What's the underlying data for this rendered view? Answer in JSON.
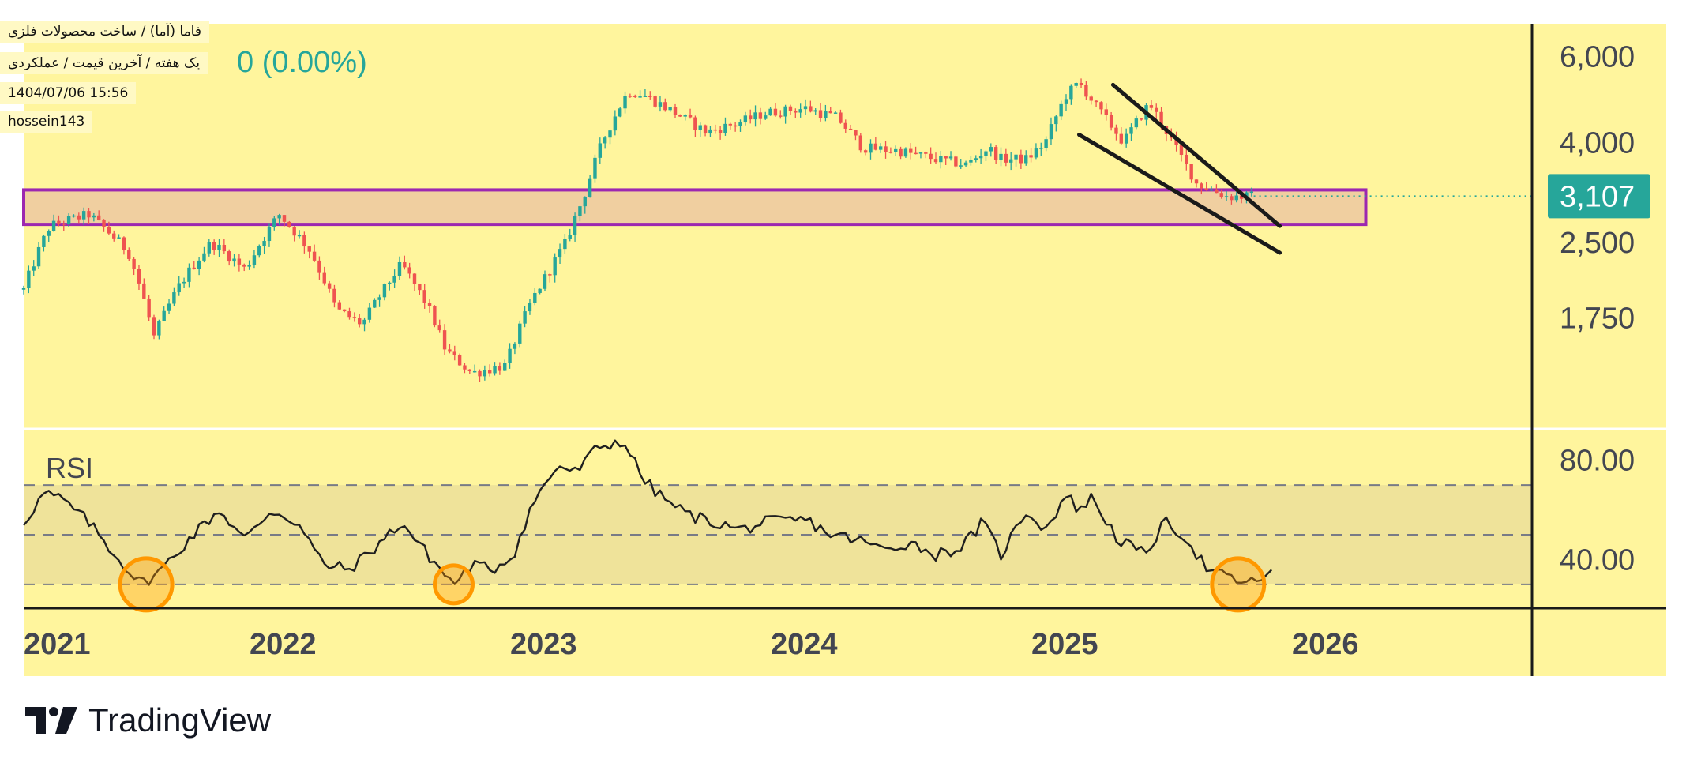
{
  "header": {
    "title": "فاما (آما) / ساخت محصولات فلزی",
    "subtitle": "یک هفته / آخرین قیمت / عملکردی",
    "datetime": "1404/07/06 15:56",
    "author": "hossein143",
    "price_change": "0 (0.00%)"
  },
  "brand": {
    "name": "TradingView"
  },
  "colors": {
    "background": "#fff59d",
    "up": "#26a69a",
    "down": "#ef5350",
    "zone_fill": "#f0cfa0",
    "zone_border": "#9c27b0",
    "rsi_band": "#efe39a",
    "circle": "#ff9800",
    "last_price_label": "#26a69a"
  },
  "chart_data": [
    {
      "type": "candlestick",
      "timeframe": "1W",
      "y_scale": "log",
      "ylim": [
        1050,
        7000
      ],
      "price_ticks": [
        "6,000",
        "4,000",
        "2,500",
        "1,750"
      ],
      "price_tick_values": [
        6000,
        4000,
        2500,
        1750
      ],
      "last_price": 3107,
      "last_price_label": "3,107",
      "x_labels": [
        "2021",
        "2022",
        "2023",
        "2024",
        "2025",
        "2026"
      ],
      "support_zone": {
        "low": 2720,
        "high": 3200,
        "start": 2021.0,
        "end": 2026.15
      },
      "wedge_lines": [
        {
          "from": [
            2025.18,
            5250
          ],
          "to": [
            2025.82,
            2700
          ]
        },
        {
          "from": [
            2025.05,
            4150
          ],
          "to": [
            2025.82,
            2380
          ]
        }
      ],
      "anchors": [
        [
          2021.0,
          2000
        ],
        [
          2021.1,
          2700
        ],
        [
          2021.25,
          2850
        ],
        [
          2021.4,
          2400
        ],
        [
          2021.5,
          1600
        ],
        [
          2021.6,
          2050
        ],
        [
          2021.72,
          2500
        ],
        [
          2021.85,
          2200
        ],
        [
          2021.98,
          2850
        ],
        [
          2022.1,
          2400
        ],
        [
          2022.2,
          1820
        ],
        [
          2022.3,
          1700
        ],
        [
          2022.45,
          2250
        ],
        [
          2022.55,
          1850
        ],
        [
          2022.62,
          1500
        ],
        [
          2022.72,
          1350
        ],
        [
          2022.85,
          1400
        ],
        [
          2022.95,
          1900
        ],
        [
          2023.02,
          2200
        ],
        [
          2023.08,
          2500
        ],
        [
          2023.15,
          3100
        ],
        [
          2023.22,
          4000
        ],
        [
          2023.32,
          5100
        ],
        [
          2023.38,
          5000
        ],
        [
          2023.5,
          4600
        ],
        [
          2023.62,
          4200
        ],
        [
          2023.75,
          4400
        ],
        [
          2023.85,
          4600
        ],
        [
          2024.0,
          4700
        ],
        [
          2024.12,
          4500
        ],
        [
          2024.22,
          3900
        ],
        [
          2024.35,
          3850
        ],
        [
          2024.5,
          3700
        ],
        [
          2024.62,
          3600
        ],
        [
          2024.7,
          3900
        ],
        [
          2024.75,
          3700
        ],
        [
          2024.85,
          3700
        ],
        [
          2024.92,
          4000
        ],
        [
          2025.0,
          5000
        ],
        [
          2025.05,
          5300
        ],
        [
          2025.12,
          4700
        ],
        [
          2025.22,
          4000
        ],
        [
          2025.32,
          4800
        ],
        [
          2025.42,
          3900
        ],
        [
          2025.5,
          3300
        ],
        [
          2025.62,
          3100
        ],
        [
          2025.72,
          3107
        ]
      ]
    },
    {
      "type": "line",
      "name": "RSI",
      "label": "RSI",
      "ylim": [
        22,
        92
      ],
      "levels": [
        70,
        50,
        30
      ],
      "y_ticks": [
        "80.00",
        "40.00"
      ],
      "y_tick_values": [
        80,
        40
      ],
      "anchors": [
        [
          2021.0,
          55
        ],
        [
          2021.08,
          67
        ],
        [
          2021.15,
          64
        ],
        [
          2021.25,
          55
        ],
        [
          2021.35,
          42
        ],
        [
          2021.45,
          30
        ],
        [
          2021.52,
          35
        ],
        [
          2021.65,
          50
        ],
        [
          2021.75,
          60
        ],
        [
          2021.85,
          48
        ],
        [
          2021.95,
          60
        ],
        [
          2022.05,
          55
        ],
        [
          2022.15,
          38
        ],
        [
          2022.25,
          36
        ],
        [
          2022.35,
          45
        ],
        [
          2022.45,
          55
        ],
        [
          2022.55,
          42
        ],
        [
          2022.65,
          30
        ],
        [
          2022.72,
          38
        ],
        [
          2022.8,
          36
        ],
        [
          2022.88,
          42
        ],
        [
          2022.95,
          62
        ],
        [
          2023.05,
          78
        ],
        [
          2023.12,
          75
        ],
        [
          2023.2,
          85
        ],
        [
          2023.3,
          88
        ],
        [
          2023.38,
          72
        ],
        [
          2023.45,
          65
        ],
        [
          2023.55,
          58
        ],
        [
          2023.65,
          55
        ],
        [
          2023.75,
          52
        ],
        [
          2023.85,
          55
        ],
        [
          2024.0,
          56
        ],
        [
          2024.1,
          50
        ],
        [
          2024.2,
          48
        ],
        [
          2024.3,
          44
        ],
        [
          2024.4,
          47
        ],
        [
          2024.5,
          42
        ],
        [
          2024.6,
          45
        ],
        [
          2024.68,
          55
        ],
        [
          2024.75,
          42
        ],
        [
          2024.85,
          60
        ],
        [
          2024.92,
          52
        ],
        [
          2025.0,
          66
        ],
        [
          2025.05,
          60
        ],
        [
          2025.1,
          65
        ],
        [
          2025.2,
          48
        ],
        [
          2025.3,
          42
        ],
        [
          2025.38,
          55
        ],
        [
          2025.45,
          50
        ],
        [
          2025.55,
          35
        ],
        [
          2025.62,
          33
        ],
        [
          2025.7,
          30
        ],
        [
          2025.75,
          33
        ],
        [
          2025.8,
          35
        ]
      ],
      "circles": [
        {
          "x": 2021.47,
          "y": 30
        },
        {
          "x": 2022.65,
          "y": 30
        },
        {
          "x": 2025.66,
          "y": 30
        }
      ]
    }
  ]
}
